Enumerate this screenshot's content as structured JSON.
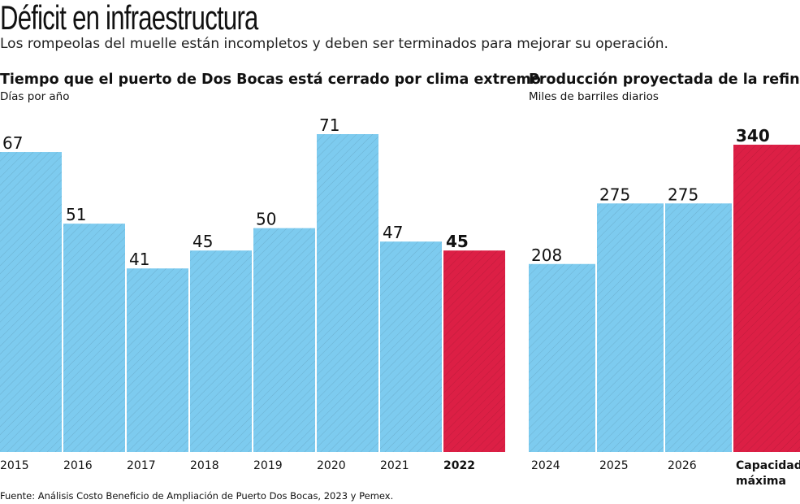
{
  "title": "Déficit en infraestructura",
  "subtitle": "Los rompeolas del muelle están incompletos y deben ser terminados para mejorar su operación.",
  "source": "Fuente:  Análisis Costo Beneficio de Ampliación de Puerto Dos Bocas, 2023 y Pemex.",
  "colors": {
    "base": "#7dcbef",
    "highlight": "#dc1f45"
  },
  "chart_data": [
    {
      "type": "bar",
      "title": "Tiempo que el puerto de Dos Bocas está cerrado por clima extremo",
      "ylabel": "Días por año",
      "categories": [
        "2015",
        "2016",
        "2017",
        "2018",
        "2019",
        "2020",
        "2021",
        "2022"
      ],
      "values": [
        67,
        51,
        41,
        45,
        50,
        71,
        47,
        45
      ],
      "highlight": [
        7
      ],
      "ylim": [
        0,
        71
      ]
    },
    {
      "type": "bar",
      "title": "Producción proyectada de la refinería",
      "ylabel": "Miles de barriles diarios",
      "categories": [
        [
          "2024"
        ],
        [
          "2025"
        ],
        [
          "2026"
        ],
        [
          "Capacidad",
          "máxima"
        ]
      ],
      "values": [
        208,
        275,
        275,
        340
      ],
      "highlight": [
        3
      ],
      "ylim": [
        0,
        340
      ]
    }
  ]
}
